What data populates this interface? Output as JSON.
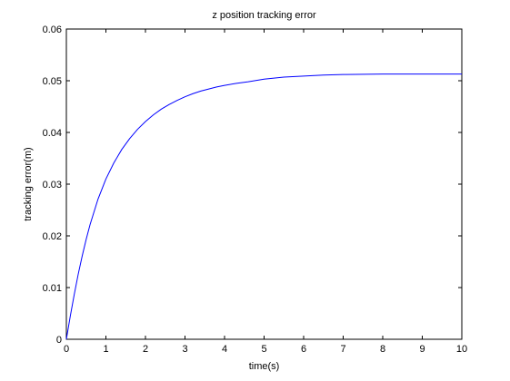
{
  "chart_data": {
    "type": "line",
    "title": "z position tracking error",
    "xlabel": "time(s)",
    "ylabel": "tracking error(m)",
    "xlim": [
      0,
      10
    ],
    "ylim": [
      0,
      0.06
    ],
    "xticks": [
      0,
      1,
      2,
      3,
      4,
      5,
      6,
      7,
      8,
      9,
      10
    ],
    "yticks": [
      0,
      0.01,
      0.02,
      0.03,
      0.04,
      0.05,
      0.06
    ],
    "xtick_labels": [
      "0",
      "1",
      "2",
      "3",
      "4",
      "5",
      "6",
      "7",
      "8",
      "9",
      "10"
    ],
    "ytick_labels": [
      "0",
      "0.01",
      "0.02",
      "0.03",
      "0.04",
      "0.05",
      "0.06"
    ],
    "grid": false,
    "series": [
      {
        "color": "#0000ff",
        "x": [
          0,
          0.1,
          0.2,
          0.3,
          0.4,
          0.5,
          0.6,
          0.8,
          1.0,
          1.2,
          1.4,
          1.6,
          1.8,
          2.0,
          2.2,
          2.4,
          2.6,
          2.8,
          3.0,
          3.2,
          3.4,
          3.6,
          3.8,
          4.0,
          4.3,
          4.6,
          5.0,
          5.5,
          6.0,
          6.5,
          7.0,
          8.0,
          9.0,
          10.0
        ],
        "y": [
          0,
          0.0045,
          0.0087,
          0.0126,
          0.0161,
          0.0193,
          0.0222,
          0.0271,
          0.031,
          0.0341,
          0.0367,
          0.0388,
          0.0406,
          0.0421,
          0.0434,
          0.0445,
          0.0454,
          0.0462,
          0.0469,
          0.0475,
          0.048,
          0.0484,
          0.0488,
          0.0491,
          0.0495,
          0.0498,
          0.0503,
          0.0507,
          0.0509,
          0.0511,
          0.0512,
          0.0513,
          0.0513,
          0.0513
        ]
      }
    ]
  }
}
